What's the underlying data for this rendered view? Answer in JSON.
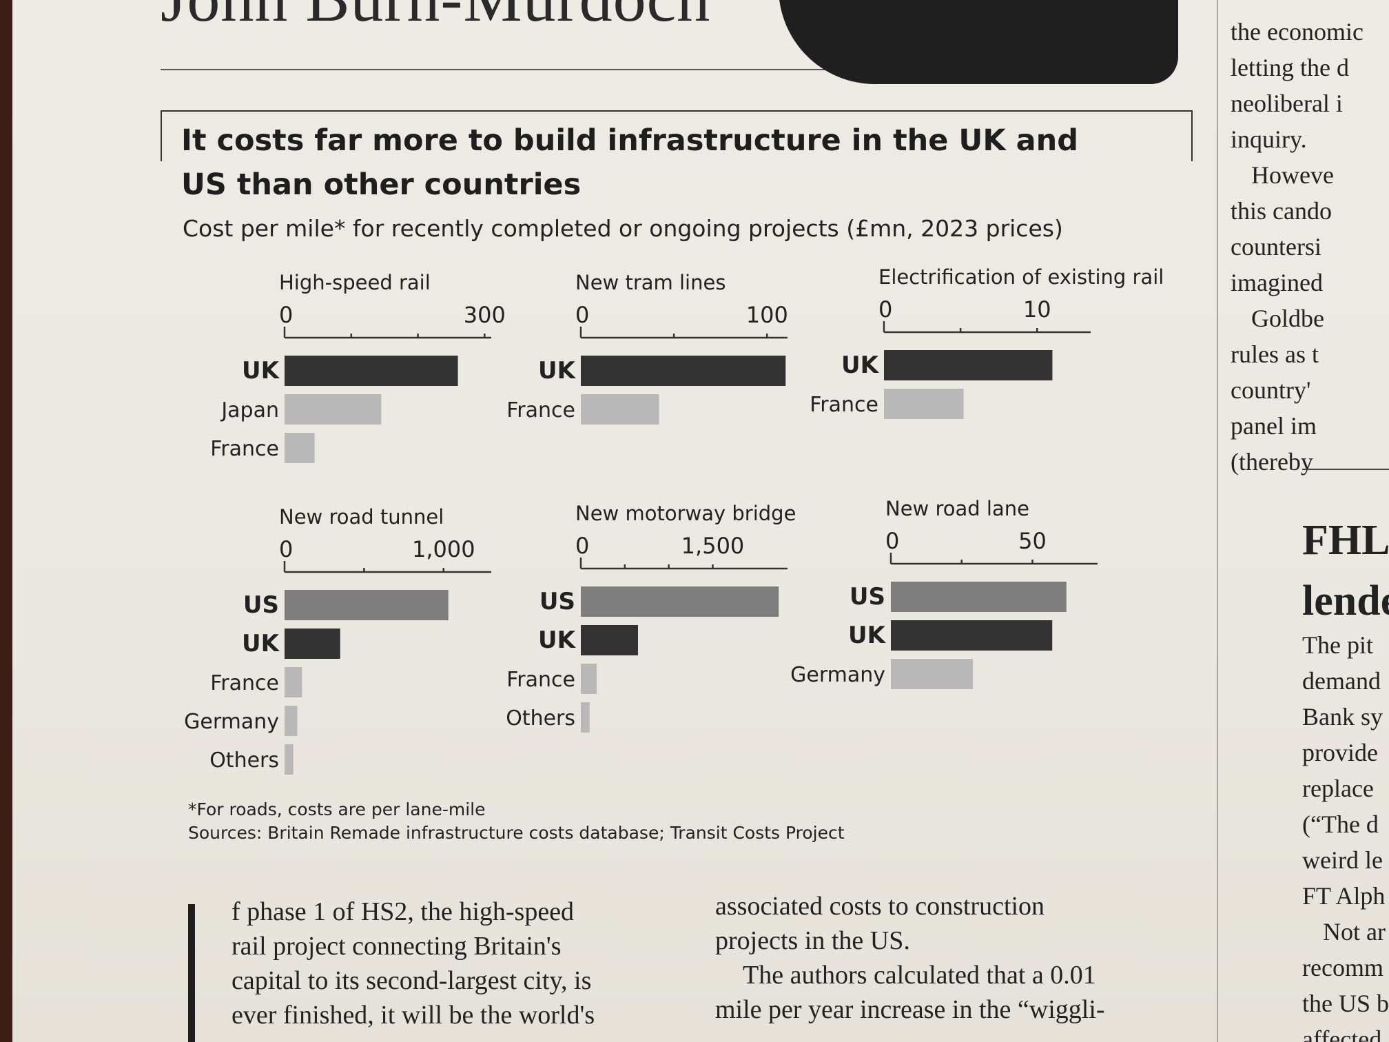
{
  "article": {
    "byline": "John Burn-Murdoch",
    "left_text": [
      "f phase 1 of HS2, the high-speed",
      "rail project connecting Britain's",
      "capital to its second-largest city, is",
      "ever finished, it will be the world's"
    ],
    "middle_text": [
      "associated costs to construction",
      "projects in the US.",
      "The authors calculated that a 0.01",
      "mile per year increase in the “wiggli-"
    ],
    "right_column_top": [
      "the economic",
      "letting the d",
      "neoliberal i",
      "inquiry.",
      "Howeve",
      "this cando",
      "countersi",
      "imagined",
      "Goldbe",
      "rules as t",
      "country'",
      "panel im",
      "(thereby"
    ],
    "right_headline": [
      "FHLE",
      "lende"
    ],
    "right_column_bottom": [
      "The pit",
      "demand",
      "Bank sy",
      "provide",
      "replace",
      "(“The d",
      "weird le",
      "FT Alph",
      "Not ar",
      "recomm",
      "the US b",
      "affected"
    ]
  },
  "chart": {
    "title": "It costs far more to build infrastructure in the UK and US than other countries",
    "subtitle": "Cost per mile* for recently completed or ongoing projects (£mn, 2023 prices)",
    "footnote": "*For roads, costs are per lane-mile",
    "source": "Sources: Britain Remade infrastructure costs database; Transit Costs Project"
  },
  "colors": {
    "uk": "#333333",
    "us": "#7e7e7e",
    "other": "#b8b8b8",
    "axis": "#333333",
    "text": "#222222"
  },
  "chart_data": [
    {
      "type": "bar",
      "title": "High-speed rail",
      "categories": [
        "UK",
        "Japan",
        "France"
      ],
      "values": [
        260,
        145,
        45
      ],
      "xlim": [
        0,
        310
      ],
      "ticks": [
        0,
        100,
        200,
        300
      ],
      "tick_labels": [
        "0",
        "300"
      ]
    },
    {
      "type": "bar",
      "title": "New tram lines",
      "categories": [
        "UK",
        "France"
      ],
      "values": [
        110,
        42
      ],
      "xlim": [
        0,
        111
      ],
      "ticks": [
        0,
        50,
        100
      ],
      "tick_labels": [
        "0",
        "100"
      ]
    },
    {
      "type": "bar",
      "title": "Electrification of existing rail",
      "categories": [
        "UK",
        "France"
      ],
      "values": [
        11,
        5.2
      ],
      "xlim": [
        0,
        13.5
      ],
      "ticks": [
        0,
        5,
        10
      ],
      "tick_labels": [
        "0",
        "10"
      ]
    },
    {
      "type": "bar",
      "title": "New road tunnel",
      "categories": [
        "US",
        "UK",
        "France",
        "Germany",
        "Others"
      ],
      "values": [
        1030,
        350,
        110,
        80,
        55
      ],
      "xlim": [
        0,
        1300
      ],
      "ticks": [
        0,
        500,
        1000
      ],
      "tick_labels": [
        "0",
        "1,000"
      ]
    },
    {
      "type": "bar",
      "title": "New motorway bridge",
      "categories": [
        "US",
        "UK",
        "France",
        "Others"
      ],
      "values": [
        2250,
        650,
        180,
        100
      ],
      "xlim": [
        0,
        2350
      ],
      "ticks": [
        0,
        500,
        1000,
        1500
      ],
      "tick_labels": [
        "0",
        "1,500"
      ]
    },
    {
      "type": "bar",
      "title": "New road lane",
      "categories": [
        "US",
        "UK",
        "Germany"
      ],
      "values": [
        62,
        57,
        29
      ],
      "xlim": [
        0,
        73
      ],
      "ticks": [
        0,
        25,
        50
      ],
      "tick_labels": [
        "0",
        "50"
      ]
    }
  ]
}
